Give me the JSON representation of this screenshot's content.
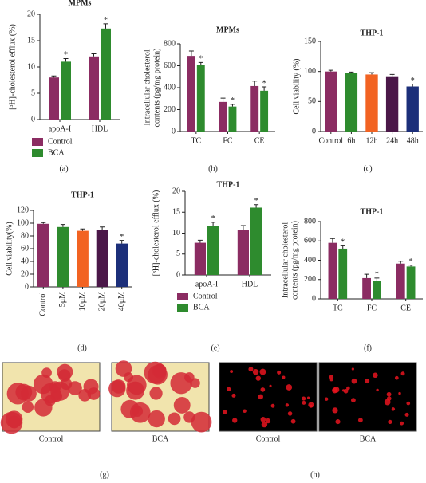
{
  "chart_data": [
    {
      "type": "bar",
      "title": "MPMs",
      "label": "(a)",
      "ylabel": [
        "[³H]-cholesterol efflux (%)"
      ],
      "categories": [
        "apoA-I",
        "HDL"
      ],
      "ylim": [
        0,
        20
      ],
      "yticks": [
        0,
        5,
        10,
        15,
        20
      ],
      "legend": true,
      "annotation": "*",
      "series": [
        {
          "name": "Control",
          "color": "#8b2c62",
          "values": [
            8,
            12
          ],
          "errors": [
            0.3,
            0.5
          ],
          "annotated": [
            false,
            false
          ]
        },
        {
          "name": "BCA",
          "color": "#2e8b2e",
          "values": [
            11,
            17.3
          ],
          "errors": [
            0.6,
            0.9
          ],
          "annotated": [
            true,
            true
          ]
        }
      ]
    },
    {
      "type": "bar",
      "title": "MPMs",
      "label": "(b)",
      "ylabel": [
        "Intracellular cholesterol",
        "contents (pg/mg protein)"
      ],
      "categories": [
        "TC",
        "FC",
        "CE"
      ],
      "ylim": [
        0,
        800
      ],
      "yticks": [
        0,
        200,
        400,
        600,
        800
      ],
      "legend": false,
      "annotation": "*",
      "series": [
        {
          "name": "Control",
          "color": "#8b2c62",
          "values": [
            690,
            270,
            415
          ],
          "errors": [
            45,
            35,
            45
          ],
          "annotated": [
            false,
            false,
            false
          ]
        },
        {
          "name": "BCA",
          "color": "#2e8b2e",
          "values": [
            605,
            228,
            372
          ],
          "errors": [
            25,
            20,
            35
          ],
          "annotated": [
            true,
            true,
            true
          ]
        }
      ]
    },
    {
      "type": "bar",
      "title": "THP-1",
      "label": "(c)",
      "ylabel": [
        "Cell viability (%)"
      ],
      "categories": [
        "Control",
        "6h",
        "12h",
        "24h",
        "48h"
      ],
      "ylim": [
        0,
        150
      ],
      "yticks": [
        0,
        50,
        100,
        150
      ],
      "legend": false,
      "annotation": "*",
      "series": [
        {
          "colors": [
            "#8b2c62",
            "#2e8b2e",
            "#f26322",
            "#4a1748",
            "#1c2f7a"
          ],
          "values": [
            100,
            97,
            95,
            92,
            75
          ],
          "errors": [
            2,
            2,
            3,
            3,
            4
          ],
          "annotated": [
            false,
            false,
            false,
            false,
            true
          ]
        }
      ]
    },
    {
      "type": "bar",
      "title": "THP-1",
      "label": "(d)",
      "ylabel": [
        "Cell viability(%)"
      ],
      "categories": [
        "Control",
        "5μM",
        "10μM",
        "20μM",
        "40μM"
      ],
      "ylim": [
        0,
        120
      ],
      "yticks": [
        0,
        20,
        40,
        60,
        80,
        100,
        120
      ],
      "legend": false,
      "annotation": "*",
      "series": [
        {
          "colors": [
            "#8b2c62",
            "#2e8b2e",
            "#f26322",
            "#4a1748",
            "#1c2f7a"
          ],
          "values": [
            99,
            94,
            88,
            89,
            68
          ],
          "errors": [
            2,
            4,
            3,
            5,
            5
          ],
          "annotated": [
            false,
            false,
            false,
            false,
            true
          ]
        }
      ]
    },
    {
      "type": "bar",
      "title": "THP-1",
      "label": "(e)",
      "ylabel": [
        "[³H]-cholesterol efflux (%)"
      ],
      "categories": [
        "apoA-I",
        "HDL"
      ],
      "ylim": [
        0,
        20
      ],
      "yticks": [
        0,
        5,
        10,
        15,
        20
      ],
      "legend": true,
      "annotation": "*",
      "series": [
        {
          "name": "Control",
          "color": "#8b2c62",
          "values": [
            7.7,
            10.7
          ],
          "errors": [
            0.6,
            1.1
          ],
          "annotated": [
            false,
            false
          ]
        },
        {
          "name": "BCA",
          "color": "#2e8b2e",
          "values": [
            11.8,
            16.1
          ],
          "errors": [
            0.8,
            0.7
          ],
          "annotated": [
            true,
            true
          ]
        }
      ]
    },
    {
      "type": "bar",
      "title": "THP-1",
      "label": "(f)",
      "ylabel": [
        "Intracellular cholesterol",
        "contents (pg/mg protein)"
      ],
      "categories": [
        "TC",
        "FC",
        "CE"
      ],
      "ylim": [
        0,
        800
      ],
      "yticks": [
        0,
        200,
        400,
        600,
        800
      ],
      "legend": false,
      "annotation": "*",
      "series": [
        {
          "name": "Control",
          "color": "#8b2c62",
          "values": [
            580,
            215,
            365
          ],
          "errors": [
            45,
            40,
            25
          ],
          "annotated": [
            false,
            false,
            false
          ]
        },
        {
          "name": "BCA",
          "color": "#2e8b2e",
          "values": [
            520,
            185,
            335
          ],
          "errors": [
            30,
            30,
            15
          ],
          "annotated": [
            true,
            true,
            true
          ]
        }
      ]
    }
  ],
  "micrographs": [
    {
      "label": "(g)",
      "captions": [
        "Control",
        "BCA"
      ]
    },
    {
      "label": "(h)",
      "captions": [
        "Control",
        "BCA"
      ]
    }
  ]
}
